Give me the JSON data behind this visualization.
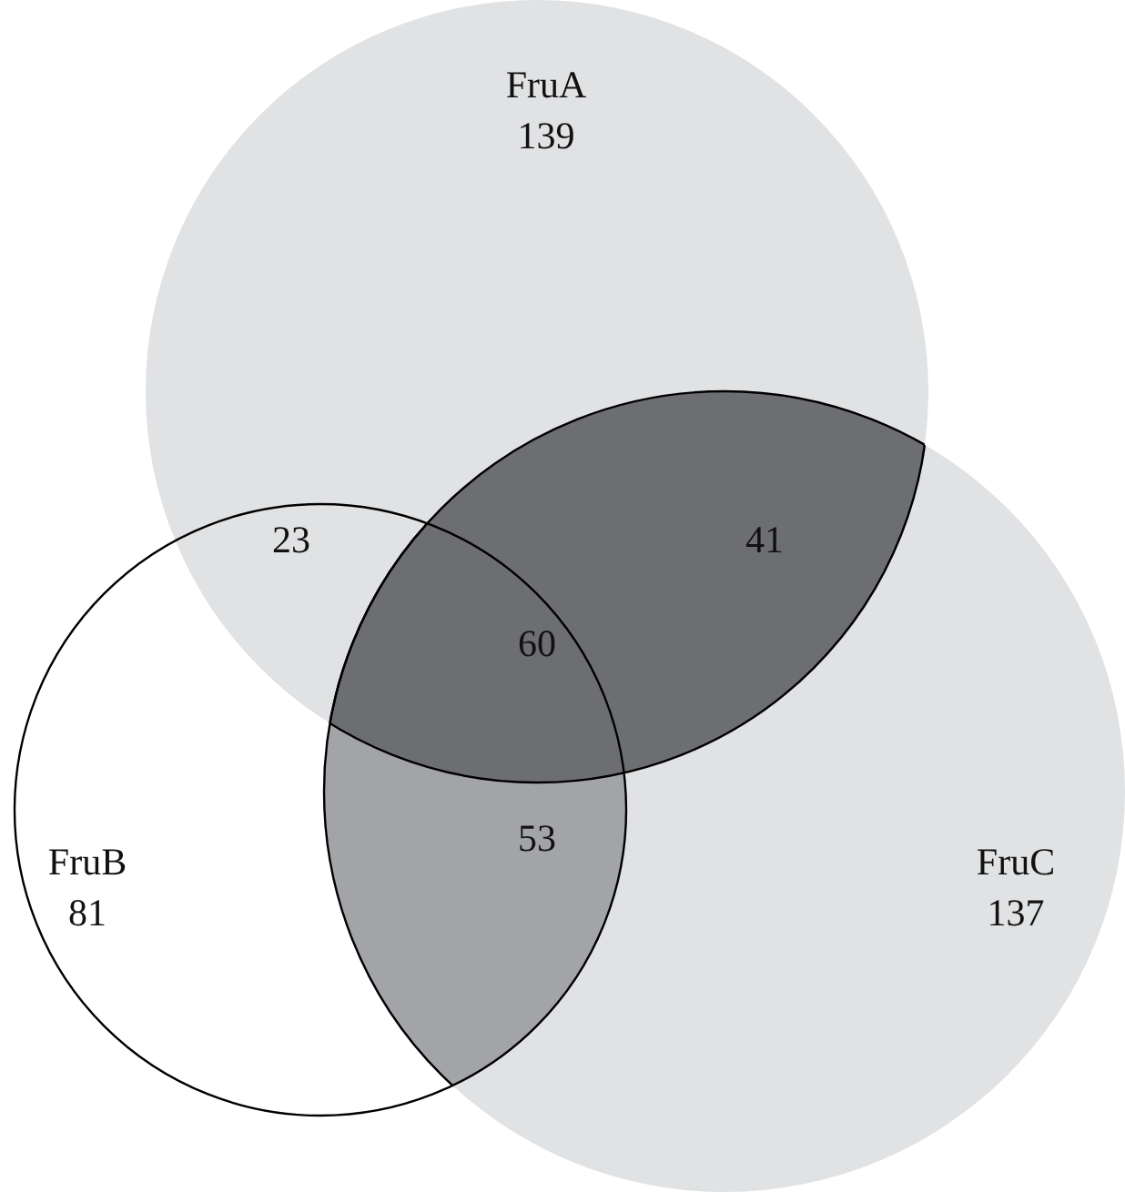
{
  "chart_data": {
    "type": "other",
    "data_labels": true,
    "categories": [
      "FruA",
      "FruB",
      "FruC"
    ],
    "values": [
      139,
      81,
      137
    ],
    "colors": [
      "#e1e2e4",
      "#ffffff",
      "#e1e2e4"
    ],
    "annotations": [
      "23",
      "41",
      "53",
      "60"
    ]
  }
}
